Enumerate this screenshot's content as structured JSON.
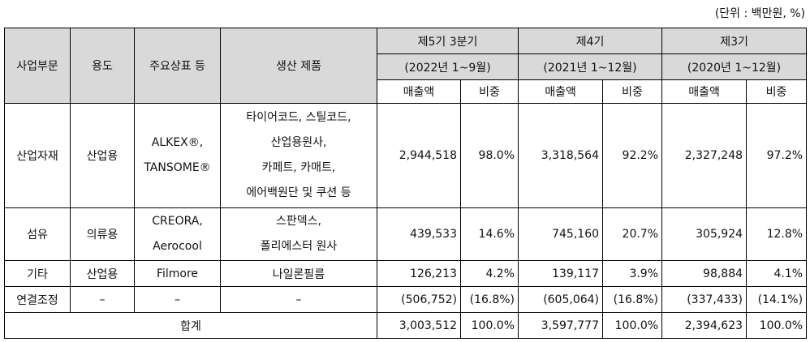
{
  "unit": "(단위 : 백만원, %)",
  "headers": {
    "segment": "사업부문",
    "usage": "용도",
    "brand": "주요상표 등",
    "product": "생산 제품",
    "periods": [
      {
        "name": "제5기 3분기",
        "range": "(2022년 1~9월)"
      },
      {
        "name": "제4기",
        "range": "(2021년 1~12월)"
      },
      {
        "name": "제3기",
        "range": "(2020년 1~12월)"
      }
    ],
    "sales": "매출액",
    "ratio": "비중"
  },
  "rows": [
    {
      "segment": "산업자재",
      "usage": "산업용",
      "brand": [
        "ALKEX®,",
        "TANSOME®"
      ],
      "product": [
        "타이어코드, 스틸코드,",
        "산업용원사,",
        "카페트, 카매트,",
        "에어백원단 및 쿠션 등"
      ],
      "values": [
        {
          "sales": "2,944,518",
          "ratio": "98.0%"
        },
        {
          "sales": "3,318,564",
          "ratio": "92.2%"
        },
        {
          "sales": "2,327,248",
          "ratio": "97.2%"
        }
      ]
    },
    {
      "segment": "섬유",
      "usage": "의류용",
      "brand": [
        "CREORA,",
        "Aerocool"
      ],
      "product": [
        "스판덱스,",
        "폴리에스터 원사"
      ],
      "values": [
        {
          "sales": "439,533",
          "ratio": "14.6%"
        },
        {
          "sales": "745,160",
          "ratio": "20.7%"
        },
        {
          "sales": "305,924",
          "ratio": "12.8%"
        }
      ]
    },
    {
      "segment": "기타",
      "usage": "산업용",
      "brand": [
        "Filmore"
      ],
      "product": [
        "나일론필름"
      ],
      "values": [
        {
          "sales": "126,213",
          "ratio": "4.2%"
        },
        {
          "sales": "139,117",
          "ratio": "3.9%"
        },
        {
          "sales": "98,884",
          "ratio": "4.1%"
        }
      ]
    },
    {
      "segment": "연결조정",
      "usage": "–",
      "brand": [
        "–"
      ],
      "product": [
        "–"
      ],
      "values": [
        {
          "sales": "(506,752)",
          "ratio": "(16.8%)"
        },
        {
          "sales": "(605,064)",
          "ratio": "(16.8%)"
        },
        {
          "sales": "(337,433)",
          "ratio": "(14.1%)"
        }
      ]
    }
  ],
  "total": {
    "label": "합계",
    "values": [
      {
        "sales": "3,003,512",
        "ratio": "100.0%"
      },
      {
        "sales": "3,597,777",
        "ratio": "100.0%"
      },
      {
        "sales": "2,394,623",
        "ratio": "100.0%"
      }
    ]
  }
}
